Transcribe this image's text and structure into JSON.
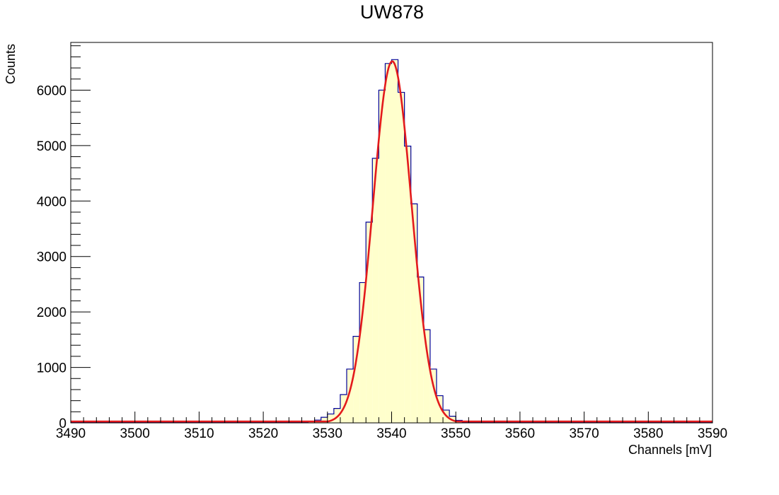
{
  "colors": {
    "background": "#ffffff",
    "frame": "#000000",
    "histogram_fill": "#ffffcc",
    "histogram_line": "#000099",
    "fit_line": "#e31a1c"
  },
  "chart_data": {
    "type": "histogram",
    "title": "UW878",
    "xlabel": "Channels [mV]",
    "ylabel": "Counts",
    "xlim": [
      3490,
      3590
    ],
    "ylim": [
      0,
      6860
    ],
    "x_ticks": [
      3490,
      3500,
      3510,
      3520,
      3530,
      3540,
      3550,
      3560,
      3570,
      3580,
      3590
    ],
    "y_ticks": [
      0,
      1000,
      2000,
      3000,
      4000,
      5000,
      6000
    ],
    "x_tick_labels": [
      "3490",
      "3500",
      "3510",
      "3520",
      "3530",
      "3540",
      "3550",
      "3560",
      "3570",
      "3580",
      "3590"
    ],
    "y_tick_labels": [
      "0",
      "1000",
      "2000",
      "3000",
      "4000",
      "5000",
      "6000"
    ],
    "grid": false,
    "legend": "none",
    "bin_width": 1,
    "bin_edges": [
      3526,
      3527,
      3528,
      3529,
      3530,
      3531,
      3532,
      3533,
      3534,
      3535,
      3536,
      3537,
      3538,
      3539,
      3540,
      3541,
      3542,
      3543,
      3544,
      3545,
      3546,
      3547,
      3548,
      3549,
      3550,
      3551,
      3552
    ],
    "counts": [
      5,
      20,
      50,
      100,
      160,
      260,
      510,
      970,
      1560,
      2530,
      3620,
      4770,
      6000,
      6480,
      6550,
      5960,
      4990,
      3950,
      2630,
      1680,
      970,
      490,
      230,
      120,
      45,
      10
    ],
    "fit": {
      "function": "gaussian",
      "constant": 6520,
      "mean": 3540.1,
      "sigma": 3.0
    }
  }
}
